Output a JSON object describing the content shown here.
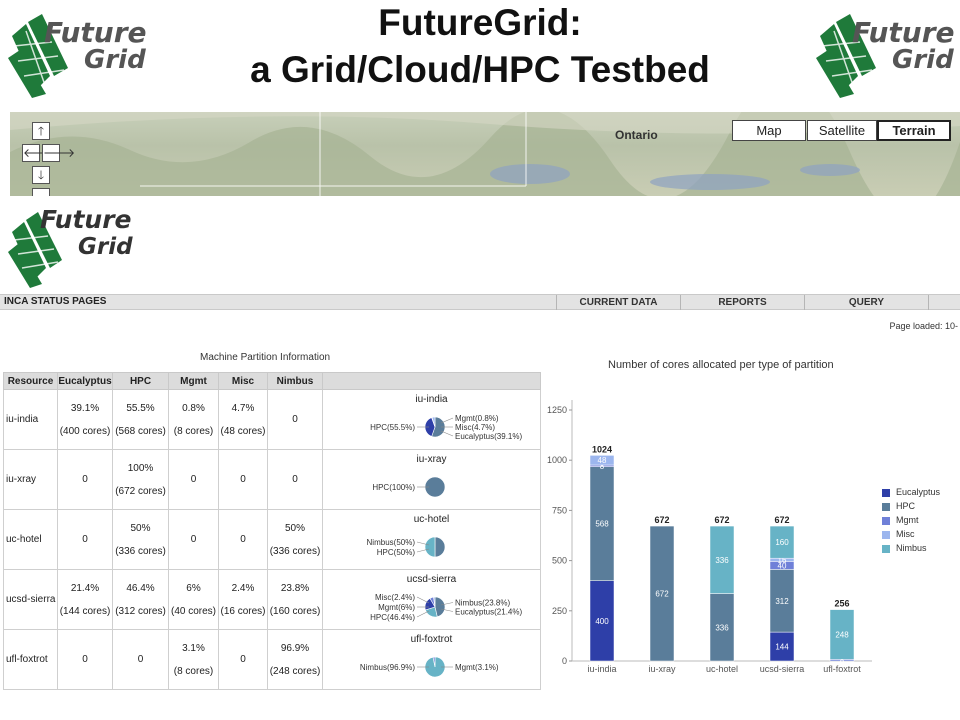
{
  "slide": {
    "title_line1": "FutureGrid:",
    "title_line2": "a Grid/Cloud/HPC Testbed",
    "logo_line1": "Future",
    "logo_line2": "Grid"
  },
  "map": {
    "label": "Ontario",
    "types": [
      "Map",
      "Satellite",
      "Terrain"
    ],
    "active_type": "Terrain",
    "controls": {
      "up": "🡑",
      "left": "🡐",
      "right": "🡒",
      "down": "🡓"
    }
  },
  "inca": {
    "title": "INCA STATUS PAGES",
    "nav": [
      "CURRENT DATA",
      "REPORTS",
      "QUERY"
    ],
    "page_loaded": "Page loaded: 10-"
  },
  "partition_table": {
    "title": "Machine Partition Information",
    "headers": [
      "Resource",
      "Eucalyptus",
      "HPC",
      "Mgmt",
      "Misc",
      "Nimbus"
    ],
    "rows": [
      {
        "resource": "iu-india",
        "cells": [
          [
            "39.1%",
            "(400 cores)"
          ],
          [
            "55.5%",
            "(568 cores)"
          ],
          [
            "0.8%",
            "(8 cores)"
          ],
          [
            "4.7%",
            "(48 cores)"
          ],
          [
            "0"
          ]
        ],
        "pie": {
          "title": "iu-india",
          "slices": [
            39.1,
            55.5,
            0.8,
            4.7,
            0
          ],
          "labels_left": [
            "HPC(55.5%)"
          ],
          "labels_right": [
            "Mgmt(0.8%)",
            "Misc(4.7%)",
            "Eucalyptus(39.1%)"
          ]
        }
      },
      {
        "resource": "iu-xray",
        "cells": [
          [
            "0"
          ],
          [
            "100%",
            "(672 cores)"
          ],
          [
            "0"
          ],
          [
            "0"
          ],
          [
            "0"
          ]
        ],
        "pie": {
          "title": "iu-xray",
          "slices": [
            0,
            100,
            0,
            0,
            0
          ],
          "labels_left": [
            "HPC(100%)"
          ],
          "labels_right": []
        }
      },
      {
        "resource": "uc-hotel",
        "cells": [
          [
            "0"
          ],
          [
            "50%",
            "(336 cores)"
          ],
          [
            "0"
          ],
          [
            "0"
          ],
          [
            "50%",
            "(336 cores)"
          ]
        ],
        "pie": {
          "title": "uc-hotel",
          "slices": [
            0,
            50,
            0,
            0,
            50
          ],
          "labels_left": [
            "Nimbus(50%)",
            "HPC(50%)"
          ],
          "labels_right": []
        }
      },
      {
        "resource": "ucsd-sierra",
        "cells": [
          [
            "21.4%",
            "(144 cores)"
          ],
          [
            "46.4%",
            "(312 cores)"
          ],
          [
            "6%",
            "(40 cores)"
          ],
          [
            "2.4%",
            "(16 cores)"
          ],
          [
            "23.8%",
            "(160 cores)"
          ]
        ],
        "pie": {
          "title": "ucsd-sierra",
          "slices": [
            21.4,
            46.4,
            6,
            2.4,
            23.8
          ],
          "labels_left": [
            "Misc(2.4%)",
            "Mgmt(6%)",
            "HPC(46.4%)"
          ],
          "labels_right": [
            "Nimbus(23.8%)",
            "Eucalyptus(21.4%)"
          ]
        }
      },
      {
        "resource": "ufl-foxtrot",
        "cells": [
          [
            "0"
          ],
          [
            "0"
          ],
          [
            "3.1%",
            "(8 cores)"
          ],
          [
            "0"
          ],
          [
            "96.9%",
            "(248 cores)"
          ]
        ],
        "pie": {
          "title": "ufl-foxtrot",
          "slices": [
            0,
            0,
            3.1,
            0,
            96.9
          ],
          "labels_left": [
            "Nimbus(96.9%)"
          ],
          "labels_right": [
            "Mgmt(3.1%)"
          ]
        }
      }
    ]
  },
  "colors": {
    "Eucalyptus": "#2e3fa8",
    "HPC": "#5a7d9a",
    "Mgmt": "#6f80d8",
    "Misc": "#9cb6ee",
    "Nimbus": "#67b3c6",
    "logo_green": "#1f7a3a"
  },
  "chart_data": {
    "type": "bar",
    "stacked": true,
    "title": "Number of cores allocated per type of partition",
    "categories": [
      "iu-india",
      "iu-xray",
      "uc-hotel",
      "ucsd-sierra",
      "ufl-foxtrot"
    ],
    "series": [
      {
        "name": "Eucalyptus",
        "values": [
          400,
          0,
          0,
          144,
          0
        ]
      },
      {
        "name": "HPC",
        "values": [
          568,
          672,
          336,
          312,
          0
        ]
      },
      {
        "name": "Mgmt",
        "values": [
          8,
          0,
          0,
          40,
          8
        ]
      },
      {
        "name": "Misc",
        "values": [
          48,
          0,
          0,
          16,
          0
        ]
      },
      {
        "name": "Nimbus",
        "values": [
          0,
          0,
          336,
          160,
          248
        ]
      }
    ],
    "totals": [
      1024,
      672,
      672,
      672,
      256
    ],
    "ylim": [
      0,
      1250
    ],
    "yticks": [
      0,
      250,
      500,
      750,
      1000,
      1250
    ],
    "legend_position": "right"
  }
}
